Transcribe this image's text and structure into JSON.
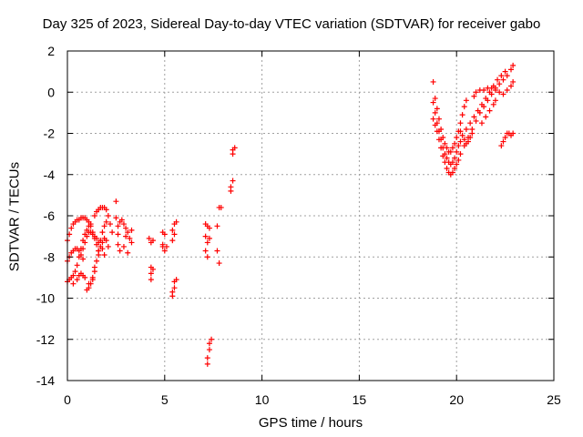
{
  "chart_data": {
    "type": "scatter",
    "title": "Day 325 of 2023, Sidereal Day-to-day VTEC variation (SDTVAR) for receiver gabo",
    "xlabel": "GPS time / hours",
    "ylabel": "SDTVAR / TECUs",
    "xlim": [
      0,
      25
    ],
    "ylim": [
      -14,
      2
    ],
    "xticks": [
      "0",
      "5",
      "10",
      "15",
      "20",
      "25"
    ],
    "yticks": [
      "2",
      "0",
      "-2",
      "-4",
      "-6",
      "-8",
      "-10",
      "-12",
      "-14"
    ],
    "grid": true,
    "marker": "+",
    "color": "#ff0000",
    "series": [
      {
        "points": [
          [
            0.0,
            -7.2
          ],
          [
            0.1,
            -6.9
          ],
          [
            0.2,
            -6.6
          ],
          [
            0.3,
            -6.4
          ],
          [
            0.4,
            -6.3
          ],
          [
            0.5,
            -6.2
          ],
          [
            0.6,
            -6.2
          ],
          [
            0.7,
            -6.1
          ],
          [
            0.8,
            -6.1
          ],
          [
            0.9,
            -6.1
          ],
          [
            1.0,
            -6.2
          ],
          [
            1.1,
            -6.3
          ],
          [
            1.2,
            -6.5
          ],
          [
            1.3,
            -6.8
          ],
          [
            1.4,
            -7.1
          ],
          [
            1.5,
            -7.4
          ],
          [
            1.6,
            -7.7
          ],
          [
            0.0,
            -8.2
          ],
          [
            0.1,
            -8.0
          ],
          [
            0.2,
            -7.8
          ],
          [
            0.3,
            -7.7
          ],
          [
            0.4,
            -7.6
          ],
          [
            0.5,
            -7.6
          ],
          [
            0.6,
            -7.7
          ],
          [
            0.7,
            -7.9
          ],
          [
            0.8,
            -8.1
          ],
          [
            0.0,
            -9.2
          ],
          [
            0.1,
            -9.1
          ],
          [
            0.2,
            -9.0
          ],
          [
            0.3,
            -8.9
          ],
          [
            0.4,
            -8.7
          ],
          [
            0.5,
            -8.4
          ],
          [
            0.6,
            -8.0
          ],
          [
            0.7,
            -7.6
          ],
          [
            0.8,
            -7.2
          ],
          [
            0.9,
            -6.9
          ],
          [
            1.0,
            -6.7
          ],
          [
            1.1,
            -6.5
          ],
          [
            1.2,
            -6.4
          ],
          [
            0.3,
            -9.3
          ],
          [
            0.5,
            -9.1
          ],
          [
            0.6,
            -8.9
          ],
          [
            0.7,
            -8.8
          ],
          [
            0.8,
            -8.9
          ],
          [
            0.9,
            -9.0
          ],
          [
            1.0,
            -9.6
          ],
          [
            1.1,
            -9.5
          ],
          [
            1.2,
            -9.3
          ],
          [
            1.3,
            -9.1
          ],
          [
            1.4,
            -8.7
          ],
          [
            1.5,
            -8.2
          ],
          [
            1.6,
            -7.7
          ],
          [
            1.7,
            -7.2
          ],
          [
            1.8,
            -6.8
          ],
          [
            1.9,
            -6.5
          ],
          [
            2.0,
            -6.3
          ],
          [
            1.1,
            -9.3
          ],
          [
            1.3,
            -9.0
          ],
          [
            1.4,
            -8.5
          ],
          [
            1.6,
            -7.9
          ],
          [
            1.7,
            -7.5
          ],
          [
            1.8,
            -7.3
          ],
          [
            1.9,
            -7.1
          ],
          [
            2.0,
            -7.2
          ],
          [
            2.1,
            -7.5
          ],
          [
            1.4,
            -6.0
          ],
          [
            1.5,
            -5.8
          ],
          [
            1.6,
            -5.7
          ],
          [
            1.7,
            -5.6
          ],
          [
            1.8,
            -5.6
          ],
          [
            1.9,
            -5.6
          ],
          [
            2.0,
            -5.7
          ],
          [
            2.1,
            -6.0
          ],
          [
            2.2,
            -6.4
          ],
          [
            2.3,
            -6.8
          ],
          [
            0.8,
            -7.6
          ],
          [
            0.9,
            -7.3
          ],
          [
            1.0,
            -7.0
          ],
          [
            1.1,
            -6.8
          ],
          [
            1.2,
            -6.8
          ],
          [
            1.3,
            -6.9
          ],
          [
            1.4,
            -7.0
          ],
          [
            1.5,
            -7.1
          ],
          [
            1.6,
            -7.3
          ],
          [
            1.8,
            -7.6
          ],
          [
            1.9,
            -7.9
          ],
          [
            2.5,
            -5.3
          ],
          [
            2.5,
            -6.1
          ],
          [
            2.6,
            -6.5
          ],
          [
            2.6,
            -6.9
          ],
          [
            2.6,
            -7.4
          ],
          [
            2.7,
            -7.7
          ],
          [
            2.7,
            -6.3
          ],
          [
            2.8,
            -6.2
          ],
          [
            2.9,
            -6.4
          ],
          [
            3.0,
            -6.6
          ],
          [
            3.1,
            -6.8
          ],
          [
            3.2,
            -7.1
          ],
          [
            3.3,
            -7.3
          ],
          [
            3.3,
            -6.7
          ],
          [
            3.0,
            -7.0
          ],
          [
            2.9,
            -7.5
          ],
          [
            3.1,
            -7.8
          ],
          [
            4.2,
            -7.1
          ],
          [
            4.3,
            -7.3
          ],
          [
            4.4,
            -7.2
          ],
          [
            4.3,
            -8.5
          ],
          [
            4.3,
            -8.8
          ],
          [
            4.3,
            -9.1
          ],
          [
            4.4,
            -8.6
          ],
          [
            4.9,
            -6.8
          ],
          [
            5.0,
            -6.9
          ],
          [
            4.9,
            -7.5
          ],
          [
            5.0,
            -7.7
          ],
          [
            5.1,
            -7.5
          ],
          [
            4.9,
            -7.4
          ],
          [
            5.4,
            -6.7
          ],
          [
            5.5,
            -6.4
          ],
          [
            5.6,
            -6.3
          ],
          [
            5.5,
            -6.9
          ],
          [
            5.4,
            -7.2
          ],
          [
            5.4,
            -9.7
          ],
          [
            5.5,
            -9.5
          ],
          [
            5.5,
            -9.2
          ],
          [
            5.4,
            -9.9
          ],
          [
            5.6,
            -9.1
          ],
          [
            7.1,
            -6.4
          ],
          [
            7.2,
            -6.5
          ],
          [
            7.1,
            -7.0
          ],
          [
            7.2,
            -7.3
          ],
          [
            7.1,
            -7.7
          ],
          [
            7.2,
            -8.0
          ],
          [
            7.3,
            -7.1
          ],
          [
            7.3,
            -6.6
          ],
          [
            7.2,
            -13.2
          ],
          [
            7.2,
            -12.9
          ],
          [
            7.3,
            -12.5
          ],
          [
            7.3,
            -12.2
          ],
          [
            7.4,
            -12.0
          ],
          [
            7.7,
            -6.5
          ],
          [
            7.8,
            -5.6
          ],
          [
            7.9,
            -5.6
          ],
          [
            7.7,
            -7.7
          ],
          [
            7.8,
            -8.3
          ],
          [
            8.4,
            -4.6
          ],
          [
            8.5,
            -4.3
          ],
          [
            8.4,
            -4.8
          ],
          [
            8.5,
            -2.8
          ],
          [
            8.5,
            -3.0
          ],
          [
            8.6,
            -2.7
          ],
          [
            18.8,
            0.5
          ],
          [
            18.9,
            -0.3
          ],
          [
            19.0,
            -0.8
          ],
          [
            19.1,
            -1.3
          ],
          [
            19.2,
            -1.8
          ],
          [
            19.3,
            -2.2
          ],
          [
            19.4,
            -2.5
          ],
          [
            19.5,
            -2.7
          ],
          [
            19.6,
            -2.9
          ],
          [
            19.7,
            -2.9
          ],
          [
            19.8,
            -2.7
          ],
          [
            19.9,
            -2.5
          ],
          [
            20.0,
            -2.2
          ],
          [
            20.1,
            -1.9
          ],
          [
            20.2,
            -1.5
          ],
          [
            20.3,
            -1.1
          ],
          [
            20.4,
            -0.7
          ],
          [
            20.5,
            -0.4
          ],
          [
            18.8,
            -0.5
          ],
          [
            18.9,
            -1.0
          ],
          [
            19.0,
            -1.5
          ],
          [
            19.1,
            -1.9
          ],
          [
            19.2,
            -2.3
          ],
          [
            19.3,
            -2.7
          ],
          [
            19.4,
            -3.0
          ],
          [
            19.5,
            -3.2
          ],
          [
            19.6,
            -3.4
          ],
          [
            19.7,
            -3.5
          ],
          [
            19.8,
            -3.4
          ],
          [
            19.9,
            -3.2
          ],
          [
            20.0,
            -2.9
          ],
          [
            20.1,
            -2.6
          ],
          [
            20.2,
            -2.4
          ],
          [
            18.8,
            -1.3
          ],
          [
            18.9,
            -1.6
          ],
          [
            19.0,
            -1.9
          ],
          [
            19.1,
            -2.3
          ],
          [
            19.2,
            -2.7
          ],
          [
            19.3,
            -3.1
          ],
          [
            19.4,
            -3.4
          ],
          [
            19.5,
            -3.7
          ],
          [
            19.6,
            -3.9
          ],
          [
            19.7,
            -4.0
          ],
          [
            19.8,
            -3.9
          ],
          [
            19.9,
            -3.7
          ],
          [
            20.0,
            -3.5
          ],
          [
            20.1,
            -3.3
          ],
          [
            20.2,
            -3.0
          ],
          [
            20.4,
            -2.6
          ],
          [
            20.6,
            -2.2
          ],
          [
            20.8,
            -1.8
          ],
          [
            21.0,
            -1.4
          ],
          [
            21.2,
            -1.0
          ],
          [
            21.4,
            -0.7
          ],
          [
            21.6,
            -0.4
          ],
          [
            21.8,
            -0.1
          ],
          [
            22.0,
            0.2
          ],
          [
            22.2,
            0.4
          ],
          [
            22.4,
            0.6
          ],
          [
            22.6,
            0.8
          ],
          [
            22.8,
            1.1
          ],
          [
            22.9,
            1.3
          ],
          [
            20.5,
            -1.8
          ],
          [
            20.7,
            -1.5
          ],
          [
            20.9,
            -1.2
          ],
          [
            21.1,
            -0.9
          ],
          [
            21.3,
            -0.6
          ],
          [
            21.5,
            -0.3
          ],
          [
            21.7,
            0.0
          ],
          [
            21.9,
            0.3
          ],
          [
            22.1,
            0.6
          ],
          [
            22.3,
            0.8
          ],
          [
            22.5,
            1.0
          ],
          [
            20.9,
            -0.2
          ],
          [
            21.0,
            0.0
          ],
          [
            21.2,
            0.1
          ],
          [
            21.4,
            0.1
          ],
          [
            21.6,
            0.2
          ],
          [
            21.8,
            0.2
          ],
          [
            22.0,
            0.1
          ],
          [
            22.2,
            0.0
          ],
          [
            22.4,
            -0.1
          ],
          [
            22.6,
            0.1
          ],
          [
            22.8,
            0.3
          ],
          [
            22.9,
            0.5
          ],
          [
            21.3,
            -1.5
          ],
          [
            21.5,
            -1.2
          ],
          [
            21.7,
            -0.9
          ],
          [
            21.9,
            -0.6
          ],
          [
            22.0,
            -0.4
          ],
          [
            22.3,
            -2.6
          ],
          [
            22.4,
            -2.4
          ],
          [
            22.5,
            -2.2
          ],
          [
            22.6,
            -2.0
          ],
          [
            22.7,
            -2.0
          ],
          [
            22.8,
            -2.1
          ],
          [
            22.9,
            -2.0
          ],
          [
            20.2,
            -1.9
          ],
          [
            20.3,
            -2.1
          ],
          [
            20.4,
            -2.3
          ],
          [
            20.5,
            -2.5
          ],
          [
            20.6,
            -2.4
          ],
          [
            20.7,
            -2.2
          ],
          [
            20.8,
            -2.0
          ]
        ]
      }
    ]
  }
}
